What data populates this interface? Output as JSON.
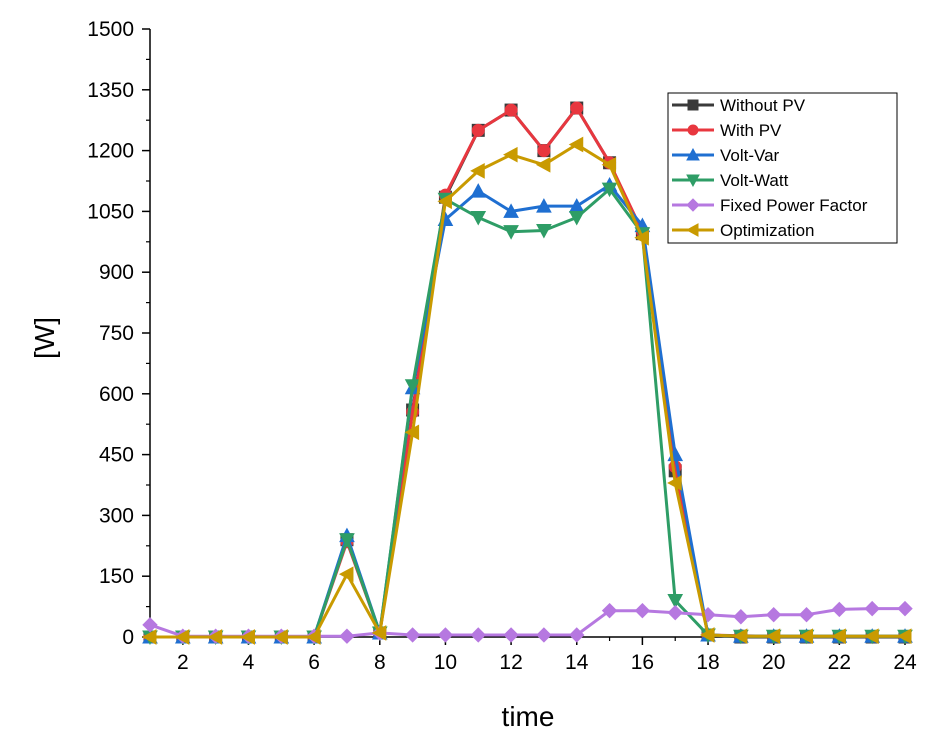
{
  "chart_data": {
    "type": "line",
    "title": "",
    "xlabel": "time",
    "ylabel": "[W]",
    "xlim": [
      1,
      24
    ],
    "ylim": [
      0,
      1500
    ],
    "xticks": [
      2,
      4,
      6,
      8,
      10,
      12,
      14,
      16,
      18,
      20,
      22,
      24
    ],
    "yticks": [
      0,
      150,
      300,
      450,
      600,
      750,
      900,
      1050,
      1200,
      1350,
      1500
    ],
    "grid": false,
    "legend_position": "top-right",
    "x": [
      1,
      2,
      3,
      4,
      5,
      6,
      7,
      8,
      9,
      10,
      11,
      12,
      13,
      14,
      15,
      16,
      17,
      18,
      19,
      20,
      21,
      22,
      23,
      24
    ],
    "series": [
      {
        "name": "Without PV",
        "color": "#3a3a3a",
        "marker": "square",
        "values": [
          0,
          0,
          0,
          0,
          0,
          0,
          240,
          10,
          560,
          1085,
          1250,
          1300,
          1200,
          1305,
          1170,
          995,
          410,
          5,
          0,
          0,
          0,
          0,
          0,
          0
        ]
      },
      {
        "name": "With PV",
        "color": "#e8373f",
        "marker": "circle",
        "values": [
          0,
          0,
          0,
          0,
          0,
          0,
          235,
          10,
          555,
          1090,
          1250,
          1300,
          1200,
          1305,
          1170,
          1000,
          420,
          5,
          3,
          2,
          2,
          2,
          2,
          2
        ]
      },
      {
        "name": "Volt-Var",
        "color": "#1f6fd1",
        "marker": "triangle-up",
        "values": [
          0,
          0,
          0,
          0,
          0,
          0,
          250,
          10,
          615,
          1030,
          1100,
          1050,
          1063,
          1063,
          1115,
          1015,
          450,
          5,
          2,
          2,
          2,
          2,
          2,
          2
        ]
      },
      {
        "name": "Volt-Watt",
        "color": "#2e9d66",
        "marker": "triangle-down",
        "values": [
          0,
          0,
          0,
          0,
          0,
          0,
          240,
          10,
          620,
          1080,
          1035,
          1000,
          1003,
          1035,
          1105,
          995,
          90,
          5,
          2,
          2,
          2,
          2,
          2,
          2
        ]
      },
      {
        "name": "Fixed Power Factor",
        "color": "#b678e0",
        "marker": "diamond",
        "values": [
          30,
          2,
          2,
          2,
          2,
          2,
          2,
          10,
          5,
          5,
          5,
          5,
          5,
          5,
          65,
          65,
          60,
          55,
          50,
          55,
          55,
          68,
          70,
          70
        ]
      },
      {
        "name": "Optimization",
        "color": "#c99a00",
        "marker": "triangle-left",
        "values": [
          0,
          0,
          0,
          0,
          0,
          0,
          155,
          10,
          505,
          1075,
          1150,
          1190,
          1165,
          1215,
          1165,
          985,
          380,
          5,
          2,
          2,
          2,
          2,
          2,
          2
        ]
      }
    ]
  }
}
